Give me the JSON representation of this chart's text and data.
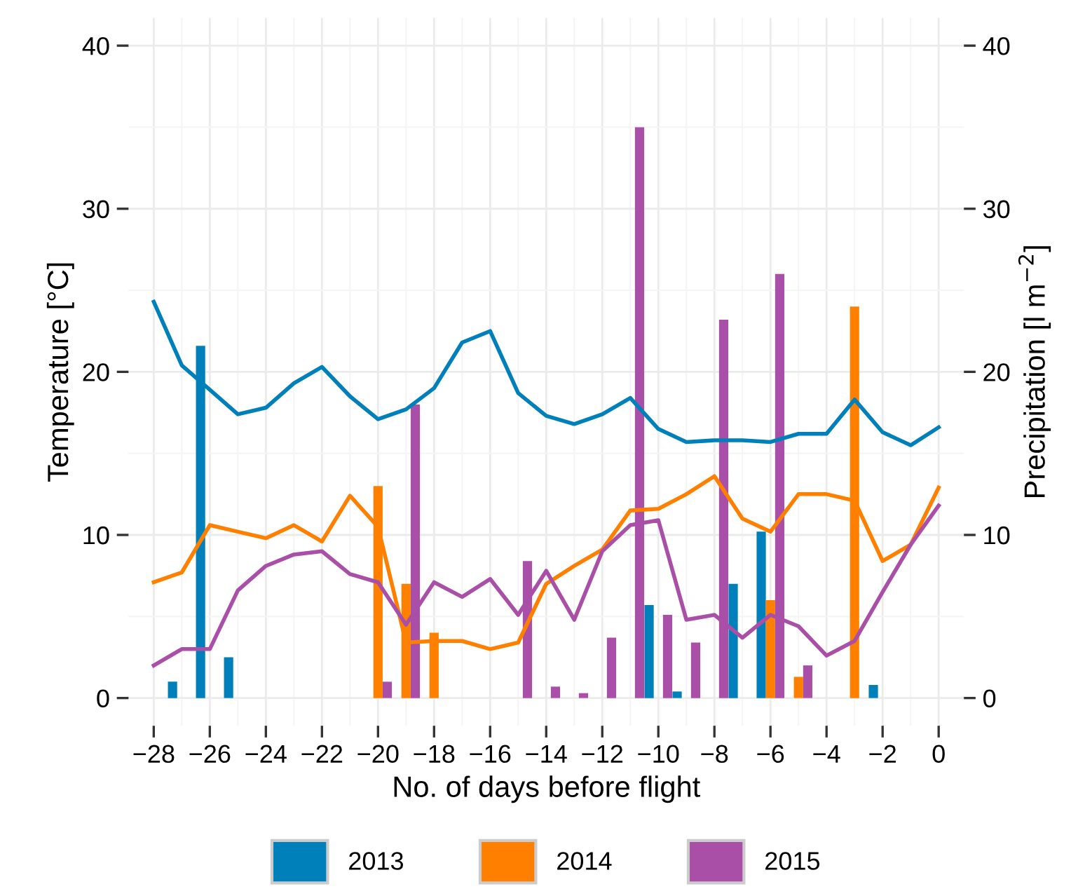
{
  "chart_data": {
    "type": "line",
    "xlabel": "No. of days before flight",
    "ylabel": "Temperature [°C]",
    "y2label": "Precipitation [l m$^{−2}$]",
    "x": [
      -28,
      -27,
      -26,
      -25,
      -24,
      -23,
      -22,
      -21,
      -20,
      -19,
      -18,
      -17,
      -16,
      -15,
      -14,
      -13,
      -12,
      -11,
      -10,
      -9,
      -8,
      -7,
      -6,
      -5,
      -4,
      -3,
      -2,
      -1,
      0
    ],
    "series": [
      {
        "type": "bar",
        "name": "2013",
        "color": "#0080bb",
        "values": [
          0,
          1.0,
          21.6,
          2.5,
          0,
          0,
          0,
          0,
          0,
          0,
          0,
          0,
          0,
          0,
          0,
          0,
          0,
          0,
          5.7,
          0.4,
          0,
          7.0,
          10.2,
          0,
          0,
          0,
          0.8,
          0,
          0
        ]
      },
      {
        "type": "bar",
        "name": "2014",
        "color": "#ff8000",
        "values": [
          0,
          0,
          0,
          0,
          0,
          0,
          0,
          0,
          13.0,
          7.0,
          4.0,
          0,
          0,
          0,
          0,
          0,
          0,
          0,
          0,
          0,
          0,
          0,
          6.0,
          1.3,
          0,
          24.0,
          0,
          0,
          0
        ]
      },
      {
        "type": "bar",
        "name": "2015",
        "color": "#aa4fa8",
        "values": [
          0,
          0,
          0,
          0,
          0,
          0,
          0,
          0,
          1.0,
          18.0,
          0,
          0,
          0,
          8.4,
          0.7,
          0.3,
          3.7,
          35.0,
          5.1,
          3.4,
          23.2,
          0,
          26.0,
          2.0,
          0,
          0,
          0,
          0,
          0
        ]
      },
      {
        "color": "#0080bb",
        "values": [
          24.3,
          20.4,
          18.9,
          17.4,
          17.8,
          19.3,
          20.3,
          18.5,
          17.1,
          17.7,
          19.0,
          21.8,
          22.5,
          18.7,
          17.3,
          16.8,
          17.4,
          18.4,
          16.5,
          15.7,
          15.8,
          15.8,
          15.7,
          16.2,
          16.2,
          18.3,
          16.3,
          15.5,
          16.6
        ]
      },
      {
        "color": "#ff8000",
        "values": [
          7.1,
          7.7,
          10.6,
          10.2,
          9.8,
          10.6,
          9.6,
          12.4,
          10.5,
          3.4,
          3.5,
          3.5,
          3.0,
          3.4,
          7.0,
          8.1,
          9.1,
          11.5,
          11.6,
          12.5,
          13.6,
          11.0,
          10.2,
          12.5,
          12.5,
          12.1,
          8.4,
          9.4,
          12.9
        ]
      },
      {
        "color": "#aa4fa8",
        "values": [
          2.0,
          3.0,
          3.0,
          6.6,
          8.1,
          8.8,
          9.0,
          7.6,
          7.1,
          4.5,
          7.1,
          6.2,
          7.3,
          5.1,
          7.8,
          4.8,
          9.0,
          10.6,
          10.9,
          4.8,
          5.1,
          3.7,
          5.1,
          4.4,
          2.6,
          3.5,
          6.5,
          9.4,
          11.8
        ]
      }
    ],
    "xlim": [
      -28.9,
      0.9
    ],
    "xticks": [
      {
        "value": -28,
        "label": "−28"
      },
      {
        "value": -26,
        "label": "−26"
      },
      {
        "value": -24,
        "label": "−24"
      },
      {
        "value": -22,
        "label": "−22"
      },
      {
        "value": -20,
        "label": "−20"
      },
      {
        "value": -18,
        "label": "−18"
      },
      {
        "value": -16,
        "label": "−16"
      },
      {
        "value": -14,
        "label": "−14"
      },
      {
        "value": -12,
        "label": "−12"
      },
      {
        "value": -10,
        "label": "−10"
      },
      {
        "value": -8,
        "label": "−8"
      },
      {
        "value": -6,
        "label": "−6"
      },
      {
        "value": -4,
        "label": "−4"
      },
      {
        "value": -2,
        "label": "−2"
      },
      0
    ],
    "ylim": [
      -1.7,
      41.7
    ],
    "yticks": [
      0,
      10,
      20,
      30,
      40
    ],
    "y2lim": [
      -1.7,
      41.7
    ],
    "y2ticks": [
      0,
      10,
      20,
      30,
      40
    ],
    "grid": true,
    "legend": "bottom"
  }
}
